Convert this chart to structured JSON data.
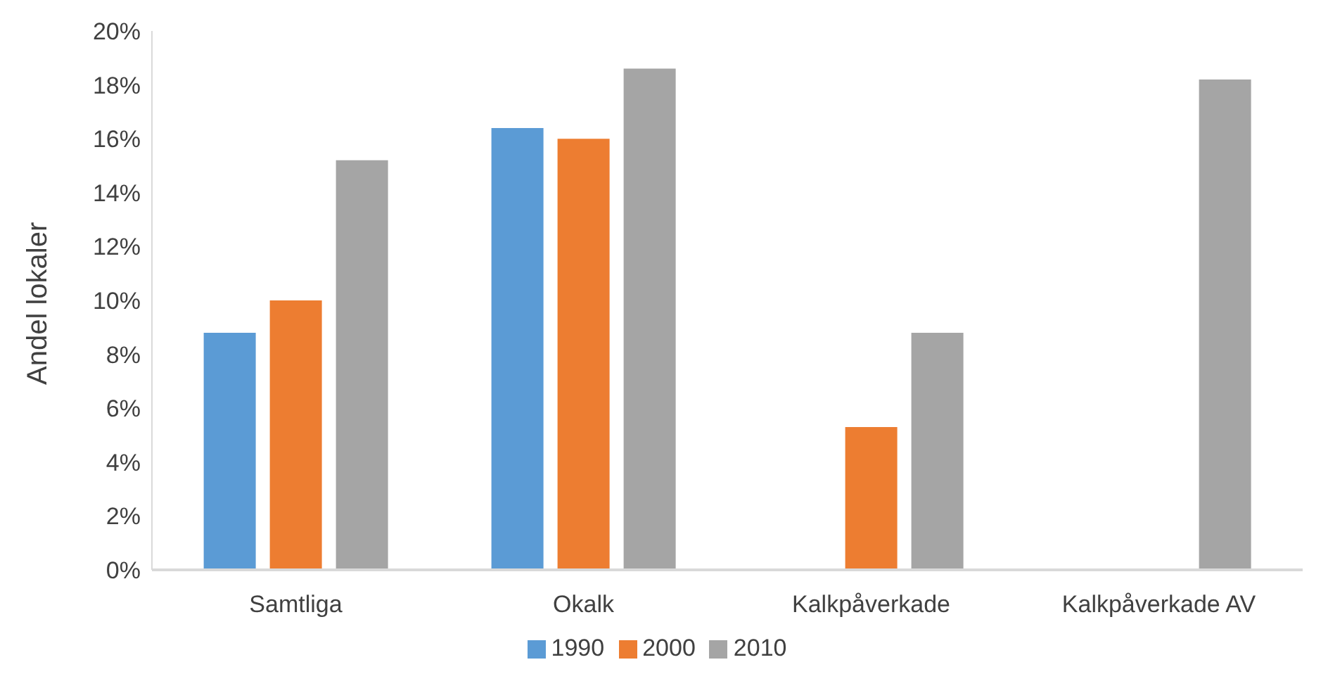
{
  "chart_data": {
    "type": "bar",
    "ylabel": "Andel lokaler",
    "categories": [
      "Samtliga",
      "Okalk",
      "Kalkpåverkade",
      "Kalkpåverkade AV"
    ],
    "series": [
      {
        "name": "1990",
        "color": "#5b9bd5",
        "values": [
          8.8,
          16.4,
          null,
          null
        ]
      },
      {
        "name": "2000",
        "color": "#ed7d31",
        "values": [
          10.0,
          16.0,
          5.3,
          null
        ]
      },
      {
        "name": "2010",
        "color": "#a5a5a5",
        "values": [
          15.2,
          18.6,
          8.8,
          18.2
        ]
      }
    ],
    "ylim": [
      0,
      20
    ],
    "yticks": [
      {
        "value": 0,
        "label": "0%"
      },
      {
        "value": 2,
        "label": "2%"
      },
      {
        "value": 4,
        "label": "4%"
      },
      {
        "value": 6,
        "label": "6%"
      },
      {
        "value": 8,
        "label": "8%"
      },
      {
        "value": 10,
        "label": "10%"
      },
      {
        "value": 12,
        "label": "12%"
      },
      {
        "value": 14,
        "label": "14%"
      },
      {
        "value": 16,
        "label": "16%"
      },
      {
        "value": 18,
        "label": "18%"
      },
      {
        "value": 20,
        "label": "20%"
      }
    ],
    "grid": false,
    "legend": "bottom"
  }
}
